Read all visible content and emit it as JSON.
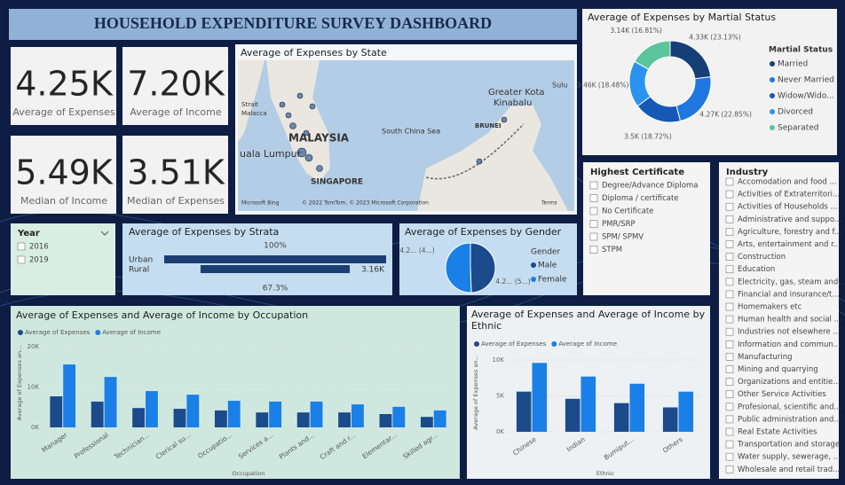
{
  "title": "HOUSEHOLD EXPENDITURE SURVEY DASHBOARD",
  "cards": [
    {
      "value": "4.25K",
      "label": "Average of Expenses"
    },
    {
      "value": "7.20K",
      "label": "Average of Income"
    },
    {
      "value": "5.49K",
      "label": "Median of Income"
    },
    {
      "value": "3.51K",
      "label": "Median of Expenses"
    }
  ],
  "map": {
    "title": "Average of Expenses by State",
    "labels": [
      "Strait",
      "Malacca",
      "MALAYSIA",
      "uala Lumpur",
      "SINGAPORE",
      "South China Sea",
      "Greater Kota",
      "Kinabalu",
      "BRUNEI",
      "Sulu",
      "Microsoft Bing",
      "© 2022 TomTom, © 2023 Microsoft Corporation",
      "Terms"
    ]
  },
  "slicers": [
    {
      "title": "Year",
      "items": [
        "2016",
        "2019"
      ]
    },
    {
      "title": "Highest Certificate",
      "items": [
        "Degree/Advance Diploma",
        "Diploma / certificate",
        "No Certificate",
        "PMR/SRP",
        "SPM/ SPMV",
        "STPM"
      ]
    },
    {
      "title": "Industry",
      "items": [
        "Accomodation and food ...",
        "Activities of Extraterritori...",
        "Activities of Households ...",
        "Administrative and suppo...",
        "Agriculture, forestry and f...",
        "Arts, entertainment and r...",
        "Construction",
        "Education",
        "Electricity, gas, steam and...",
        "Financial and insurance/t...",
        "Homemakers etc",
        "Human health and social ...",
        "Industries not elsewhere ...",
        "Information and commun...",
        "Manufacturing",
        "Mining and quarrying",
        "Organizations and entitie...",
        "Other Service Activities",
        "Profesional, scientific and...",
        "Public administration and...",
        "Real Estate Activities",
        "Transportation and storage",
        "Water supply, sewerage, ...",
        "Wholesale and retail trad..."
      ]
    }
  ],
  "chart_data": [
    {
      "type": "funnel",
      "title": "Average of Expenses by Strata",
      "categories": [
        "Urban",
        "Rural"
      ],
      "values": [
        4.7,
        3.16
      ],
      "value_labels": [
        null,
        "3.16K"
      ],
      "annotations": [
        "100%",
        "67.3%"
      ],
      "color": "#1b3f73"
    },
    {
      "type": "pie",
      "title": "Average of Expenses by Gender",
      "legend_title": "Gender",
      "categories": [
        "Male",
        "Female"
      ],
      "values": [
        4.2,
        4.29
      ],
      "value_labels": [
        "4.2... (4...)",
        "4.2... (5...)"
      ],
      "colors": [
        "#1c4b8c",
        "#1a7fe6"
      ]
    },
    {
      "type": "donut",
      "title": "Average of Expenses by Martial Status",
      "legend_title": "Martial Status",
      "categories": [
        "Married",
        "Never Married",
        "Widow/Wido...",
        "Divorced",
        "Separated"
      ],
      "values": [
        4.33,
        4.27,
        3.5,
        3.46,
        3.14
      ],
      "value_labels": [
        "4.33K (23.13%)",
        "4.27K (22.85%)",
        "3.5K (18.72%)",
        "3.46K (18.48%)",
        "3.14K (16.81%)"
      ],
      "colors": [
        "#163f78",
        "#1f78e0",
        "#1558b5",
        "#2a93f0",
        "#5cc49c"
      ]
    },
    {
      "type": "bar",
      "title": "Average of Expenses and Average of Income by Occupation",
      "x_label": "Occupation",
      "y_label": "Average of Expenses an...",
      "categories": [
        "Manager",
        "Professional",
        "Technician...",
        "Clerical su...",
        "Occupatio...",
        "Services a...",
        "Plants and...",
        "Craft and r...",
        "Elementar...",
        "Skilled agr..."
      ],
      "series": [
        {
          "name": "Average of Expenses",
          "color": "#1c4b8c",
          "values": [
            7700,
            6400,
            4800,
            4600,
            4200,
            3700,
            3700,
            3700,
            3300,
            2600
          ]
        },
        {
          "name": "Average of Income",
          "color": "#1a7fe6",
          "values": [
            15600,
            12500,
            9000,
            8100,
            6600,
            6400,
            6400,
            5700,
            5100,
            4200
          ]
        }
      ],
      "ylim": [
        0,
        22000
      ],
      "yticks": [
        {
          "value": 0,
          "label": "0K"
        },
        {
          "value": 10000,
          "label": "10K"
        },
        {
          "value": 20000,
          "label": "20K"
        }
      ]
    },
    {
      "type": "bar",
      "title": "Average of Expenses and Average of Income by Ethnic",
      "x_label": "Ethnic",
      "y_label": "Average of Expenses an...",
      "categories": [
        "Chinese",
        "Indian",
        "Bumiput...",
        "Others"
      ],
      "series": [
        {
          "name": "Average of Expenses",
          "color": "#1c4b8c",
          "values": [
            5600,
            4600,
            4000,
            3400
          ]
        },
        {
          "name": "Average of Income",
          "color": "#1a7fe6",
          "values": [
            9600,
            7700,
            6700,
            5600
          ]
        }
      ],
      "ylim": [
        0,
        11000
      ],
      "yticks": [
        {
          "value": 0,
          "label": "0K"
        },
        {
          "value": 5000,
          "label": "5K"
        },
        {
          "value": 10000,
          "label": "10K"
        }
      ]
    }
  ]
}
